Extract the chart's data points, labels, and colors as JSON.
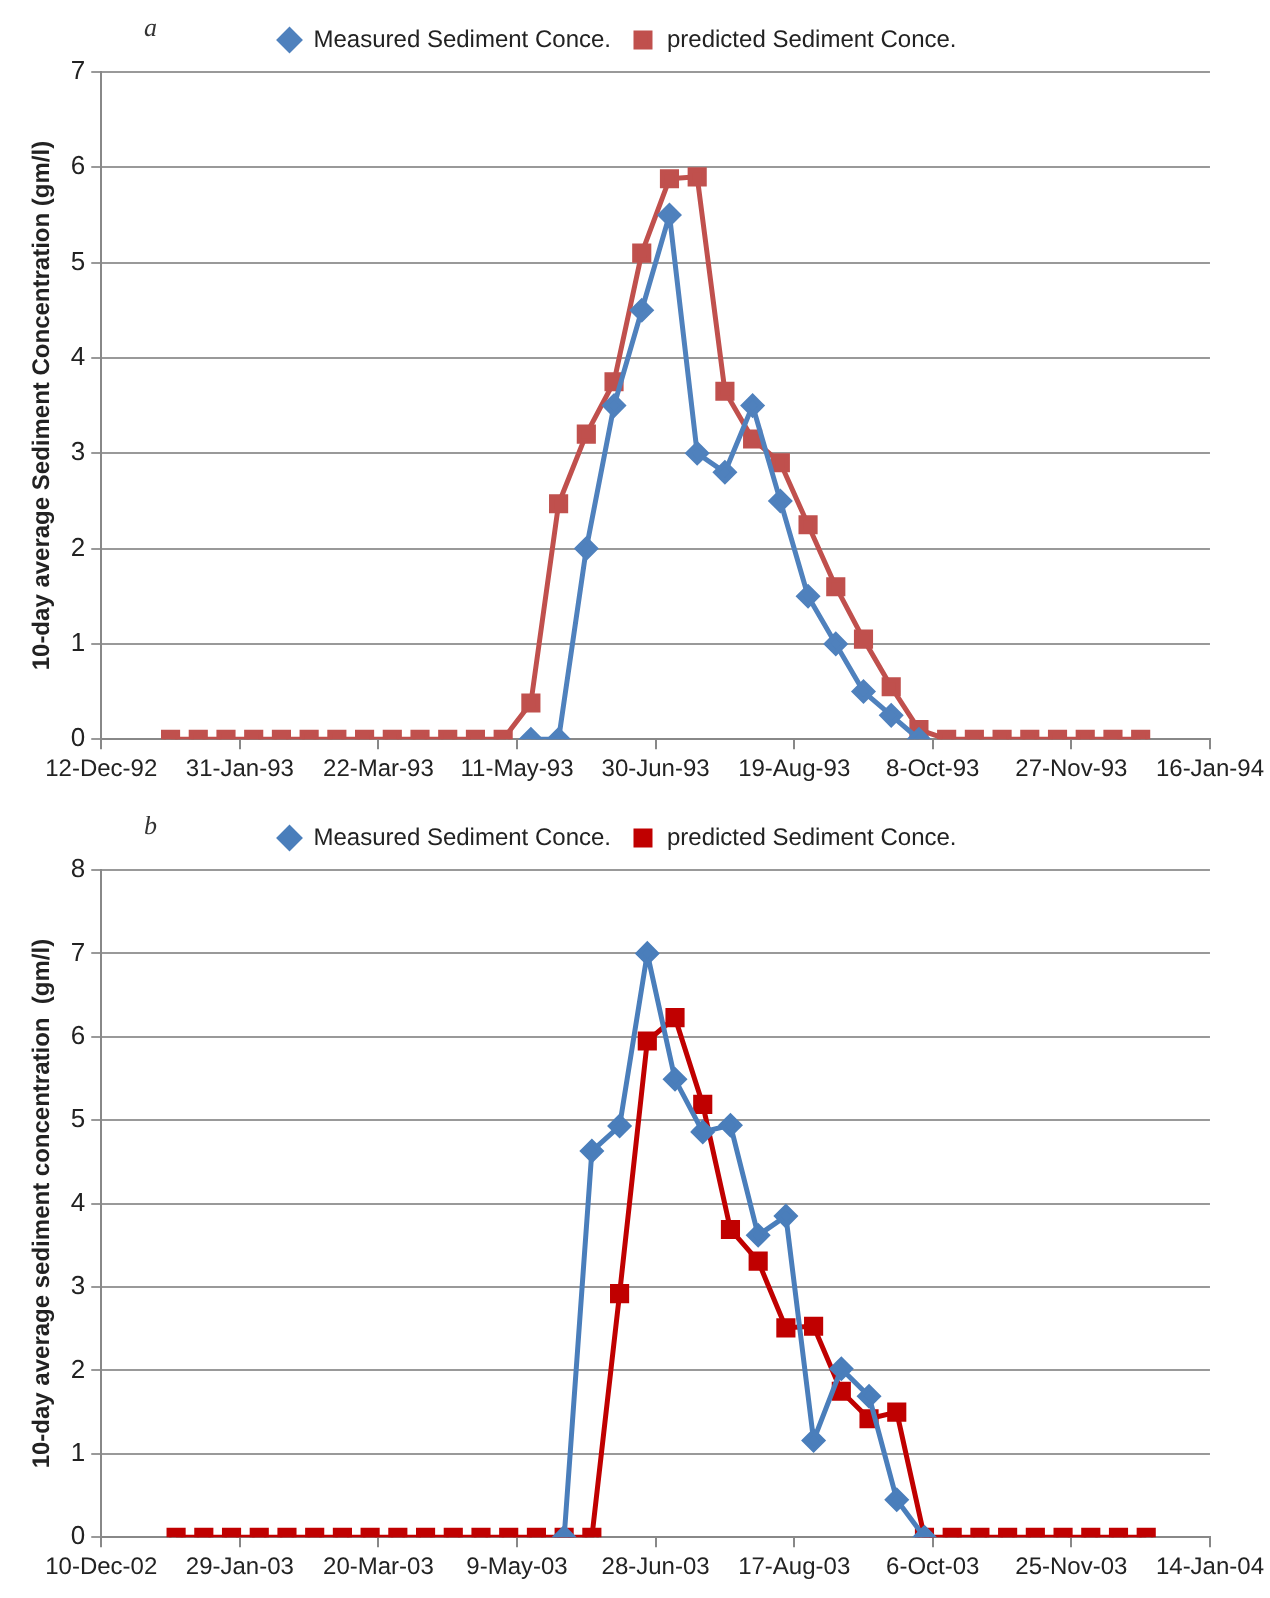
{
  "chart_data": [
    {
      "type": "line",
      "title": "a",
      "ylabel": "10-day average Sediment Concentration (gm/l)",
      "x": [
        "1993-01-06",
        "1993-01-16",
        "1993-01-26",
        "1993-02-05",
        "1993-02-15",
        "1993-02-25",
        "1993-03-07",
        "1993-03-17",
        "1993-03-27",
        "1993-04-06",
        "1993-04-16",
        "1993-04-26",
        "1993-05-06",
        "1993-05-16",
        "1993-05-26",
        "1993-06-05",
        "1993-06-15",
        "1993-06-25",
        "1993-07-05",
        "1993-07-15",
        "1993-07-25",
        "1993-08-04",
        "1993-08-14",
        "1993-08-24",
        "1993-09-03",
        "1993-09-13",
        "1993-09-23",
        "1993-10-03",
        "1993-10-13",
        "1993-10-23",
        "1993-11-02",
        "1993-11-12",
        "1993-11-22",
        "1993-12-02",
        "1993-12-12",
        "1993-12-22"
      ],
      "series": [
        {
          "name": "Measured Sediment Conce.",
          "color": "#4f81bd",
          "marker": "diamond",
          "values": [
            null,
            null,
            null,
            null,
            null,
            null,
            null,
            null,
            null,
            null,
            null,
            null,
            null,
            0,
            0,
            2.0,
            3.5,
            4.5,
            5.5,
            3.0,
            2.8,
            3.5,
            2.5,
            1.5,
            1.0,
            0.5,
            0.25,
            0,
            null,
            null,
            null,
            null,
            null,
            null,
            null,
            null
          ]
        },
        {
          "name": "predicted Sediment Conce.",
          "color": "#c0504d",
          "marker": "square",
          "values": [
            0,
            0,
            0,
            0,
            0,
            0,
            0,
            0,
            0,
            0,
            0,
            0,
            0,
            0.38,
            2.47,
            3.2,
            3.75,
            5.1,
            5.88,
            5.9,
            3.65,
            3.15,
            2.9,
            2.25,
            1.6,
            1.05,
            0.55,
            0.1,
            0,
            0,
            0,
            0,
            0,
            0,
            0,
            0
          ]
        }
      ],
      "xlim": [
        "1992-12-12",
        "1994-01-16"
      ],
      "xticks": [
        {
          "value": "1992-12-12",
          "label": "12-Dec-92"
        },
        {
          "value": "1993-01-31",
          "label": "31-Jan-93"
        },
        {
          "value": "1993-03-22",
          "label": "22-Mar-93"
        },
        {
          "value": "1993-05-11",
          "label": "11-May-93"
        },
        {
          "value": "1993-06-30",
          "label": "30-Jun-93"
        },
        {
          "value": "1993-08-19",
          "label": "19-Aug-93"
        },
        {
          "value": "1993-10-08",
          "label": "8-Oct-93"
        },
        {
          "value": "1993-11-27",
          "label": "27-Nov-93"
        },
        {
          "value": "1994-01-16",
          "label": "16-Jan-94"
        }
      ],
      "ylim": [
        0,
        7
      ],
      "yticks": [
        0,
        1,
        2,
        3,
        4,
        5,
        6,
        7
      ],
      "grid": "y",
      "legend": "top"
    },
    {
      "type": "line",
      "title": "b",
      "ylabel": "10-day average sediment concentration  (gm/l)",
      "x": [
        "2003-01-06",
        "2003-01-16",
        "2003-01-26",
        "2003-02-05",
        "2003-02-15",
        "2003-02-25",
        "2003-03-07",
        "2003-03-17",
        "2003-03-27",
        "2003-04-06",
        "2003-04-16",
        "2003-04-26",
        "2003-05-06",
        "2003-05-16",
        "2003-05-26",
        "2003-06-05",
        "2003-06-15",
        "2003-06-25",
        "2003-07-05",
        "2003-07-15",
        "2003-07-25",
        "2003-08-04",
        "2003-08-14",
        "2003-08-24",
        "2003-09-03",
        "2003-09-13",
        "2003-09-23",
        "2003-10-03",
        "2003-10-13",
        "2003-10-23",
        "2003-11-02",
        "2003-11-12",
        "2003-11-22",
        "2003-12-02",
        "2003-12-12",
        "2003-12-22"
      ],
      "series": [
        {
          "name": "Measured Sediment Conce.",
          "color": "#4a7ebb",
          "marker": "diamond",
          "values": [
            null,
            null,
            null,
            null,
            null,
            null,
            null,
            null,
            null,
            null,
            null,
            null,
            null,
            null,
            0,
            4.63,
            4.93,
            7.0,
            5.49,
            4.86,
            4.94,
            3.62,
            3.85,
            1.16,
            2.02,
            1.69,
            0.45,
            0,
            null,
            null,
            null,
            null,
            null,
            null,
            null,
            null
          ]
        },
        {
          "name": "predicted Sediment Conce.",
          "color": "#c00000",
          "marker": "square",
          "values": [
            0,
            0,
            0,
            0,
            0,
            0,
            0,
            0,
            0,
            0,
            0,
            0,
            0,
            0,
            0,
            0,
            2.92,
            5.95,
            6.23,
            5.19,
            3.69,
            3.31,
            2.51,
            2.53,
            1.75,
            1.42,
            1.5,
            0,
            0,
            0,
            0,
            0,
            0,
            0,
            0,
            0
          ]
        }
      ],
      "xlim": [
        "2002-12-10",
        "2004-01-14"
      ],
      "xticks": [
        {
          "value": "2002-12-10",
          "label": "10-Dec-02"
        },
        {
          "value": "2003-01-29",
          "label": "29-Jan-03"
        },
        {
          "value": "2003-03-20",
          "label": "20-Mar-03"
        },
        {
          "value": "2003-05-09",
          "label": "9-May-03"
        },
        {
          "value": "2003-06-28",
          "label": "28-Jun-03"
        },
        {
          "value": "2003-08-17",
          "label": "17-Aug-03"
        },
        {
          "value": "2003-10-06",
          "label": "6-Oct-03"
        },
        {
          "value": "2003-11-25",
          "label": "25-Nov-03"
        },
        {
          "value": "2004-01-14",
          "label": "14-Jan-04"
        }
      ],
      "ylim": [
        0,
        8
      ],
      "yticks": [
        0,
        1,
        2,
        3,
        4,
        5,
        6,
        7,
        8
      ],
      "grid": "y",
      "legend": "top"
    }
  ]
}
